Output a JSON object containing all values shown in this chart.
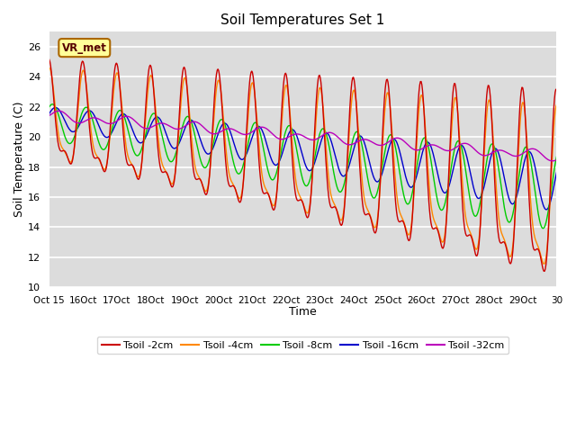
{
  "title": "Soil Temperatures Set 1",
  "xlabel": "Time",
  "ylabel": "Soil Temperature (C)",
  "ylim": [
    10,
    27
  ],
  "yticks": [
    10,
    12,
    14,
    16,
    18,
    20,
    22,
    24,
    26
  ],
  "x_tick_labels": [
    "Oct 15",
    "Oct 16",
    "Oct 17",
    "Oct 18",
    "Oct 19",
    "Oct 20",
    "Oct 21",
    "Oct 22",
    "Oct 23",
    "Oct 24",
    "Oct 25",
    "Oct 26",
    "Oct 27",
    "Oct 28",
    "Oct 29",
    "Oct 30"
  ],
  "colors": {
    "tsoil_2cm": "#cc0000",
    "tsoil_4cm": "#ff8800",
    "tsoil_8cm": "#00cc00",
    "tsoil_16cm": "#0000cc",
    "tsoil_32cm": "#bb00bb"
  },
  "legend_labels": [
    "Tsoil -2cm",
    "Tsoil -4cm",
    "Tsoil -8cm",
    "Tsoil -16cm",
    "Tsoil -32cm"
  ],
  "annotation_text": "VR_met",
  "fig_bg_color": "#ffffff",
  "plot_bg_color": "#dcdcdc"
}
